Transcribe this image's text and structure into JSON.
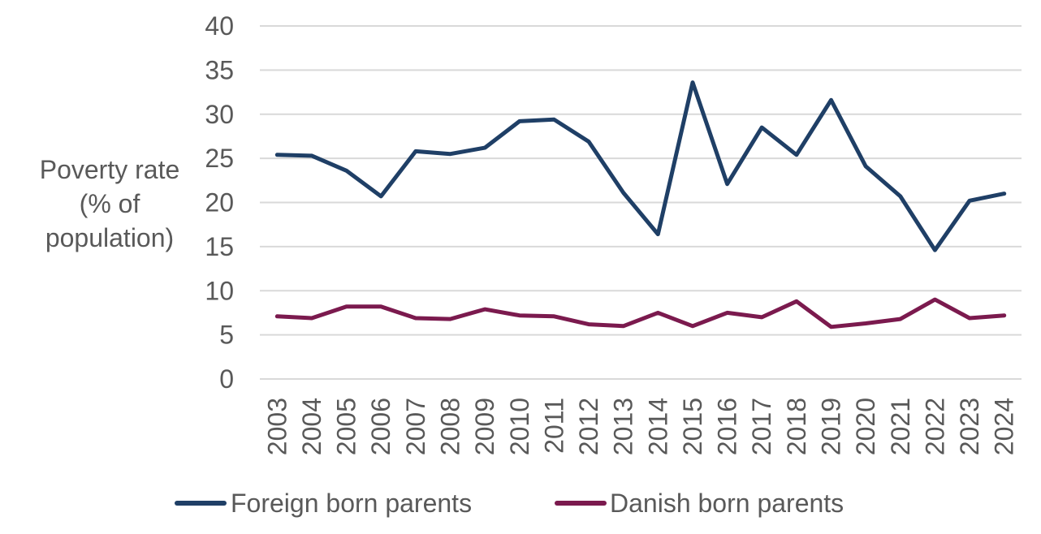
{
  "chart_data": {
    "type": "line",
    "ylabel_lines": [
      "Poverty rate",
      "(% of",
      "population)"
    ],
    "xlabel": "",
    "ylim": [
      0,
      40
    ],
    "yticks": [
      0,
      5,
      10,
      15,
      20,
      25,
      30,
      35,
      40
    ],
    "grid": true,
    "legend_position": "bottom",
    "categories": [
      "2003",
      "2004",
      "2005",
      "2006",
      "2007",
      "2008",
      "2009",
      "2010",
      "2011",
      "2012",
      "2013",
      "2014",
      "2015",
      "2016",
      "2017",
      "2018",
      "2019",
      "2020",
      "2021",
      "2022",
      "2023",
      "2024"
    ],
    "series": [
      {
        "name": "Foreign born parents",
        "color": "#1f3f66",
        "values": [
          25.4,
          25.3,
          23.6,
          20.7,
          25.8,
          25.5,
          26.2,
          29.2,
          29.4,
          26.9,
          21.1,
          16.4,
          33.6,
          22.1,
          28.5,
          25.4,
          31.6,
          24.1,
          20.7,
          14.6,
          20.2,
          21.0
        ]
      },
      {
        "name": "Danish born parents",
        "color": "#7b1a4e",
        "values": [
          7.1,
          6.9,
          8.2,
          8.2,
          6.9,
          6.8,
          7.9,
          7.2,
          7.1,
          6.2,
          6.0,
          7.5,
          6.0,
          7.5,
          7.0,
          8.8,
          5.9,
          6.3,
          6.8,
          9.0,
          6.9,
          7.2
        ]
      }
    ]
  }
}
